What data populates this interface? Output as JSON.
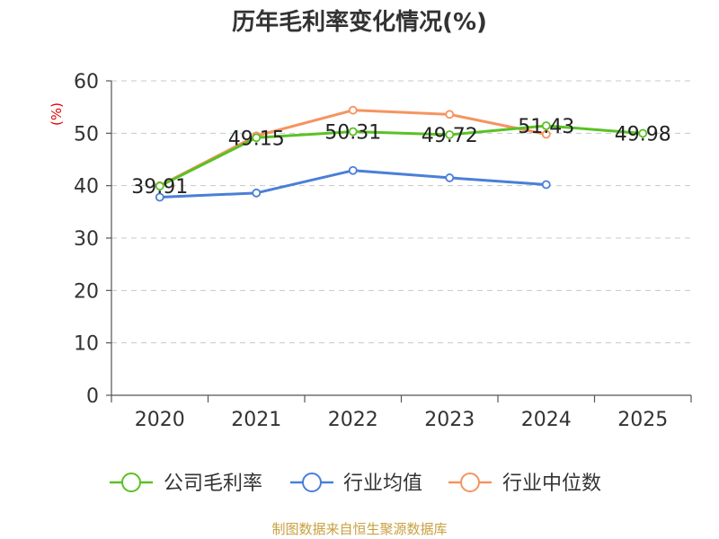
{
  "chart_data": {
    "type": "line",
    "title": "历年毛利率变化情况(%)",
    "ylabel": "(%)",
    "xlabel": "",
    "ylim": [
      0,
      60
    ],
    "yticks": [
      "0",
      "10",
      "20",
      "30",
      "40",
      "50",
      "60"
    ],
    "categories": [
      "2020",
      "2021",
      "2022",
      "2023",
      "2024",
      "2025"
    ],
    "series": [
      {
        "name": "公司毛利率",
        "color": "#5ac126",
        "values": [
          39.91,
          49.15,
          50.31,
          49.72,
          51.43,
          49.98
        ],
        "labels": [
          "39.91",
          "49.15",
          "50.31",
          "49.72",
          "51.43",
          "49.98"
        ]
      },
      {
        "name": "行业均值",
        "color": "#4a7fd8",
        "values": [
          37.8,
          38.6,
          42.9,
          41.5,
          40.2,
          null
        ]
      },
      {
        "name": "行业中位数",
        "color": "#f59460",
        "values": [
          40.0,
          49.5,
          54.4,
          53.6,
          49.8,
          null
        ]
      }
    ],
    "grid": true,
    "legend": "bottom-center"
  },
  "source": "制图数据来自恒生聚源数据库"
}
